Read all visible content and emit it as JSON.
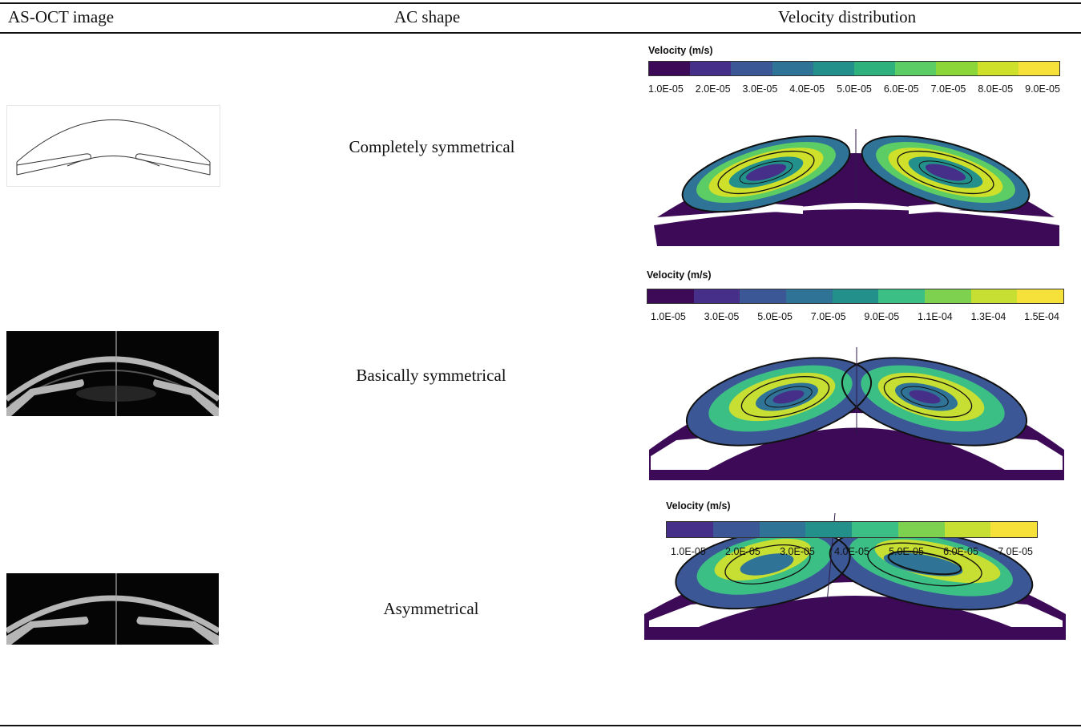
{
  "table": {
    "headers": {
      "oct": "AS-OCT image",
      "shape": "AC shape",
      "velocity": "Velocity distribution"
    },
    "rows": [
      {
        "shape": "Completely symmetrical",
        "velocity_title": "Velocity (m/s)",
        "colorbar": [
          "#3d0a57",
          "#462f88",
          "#3c5796",
          "#2f7396",
          "#23908c",
          "#2fb17d",
          "#5ccc65",
          "#8dd63a",
          "#cfe02a",
          "#f6e03a"
        ],
        "ticks": [
          "1.0E-05",
          "2.0E-05",
          "3.0E-05",
          "4.0E-05",
          "5.0E-05",
          "6.0E-05",
          "7.0E-05",
          "8.0E-05",
          "9.0E-05"
        ]
      },
      {
        "shape": "Basically symmetrical",
        "velocity_title": "Velocity (m/s)",
        "colorbar": [
          "#3d0a57",
          "#462f88",
          "#3c5796",
          "#2f7396",
          "#23908c",
          "#3cbf85",
          "#7ed04f",
          "#c7de33",
          "#f6e03a"
        ],
        "ticks": [
          "1.0E-05",
          "3.0E-05",
          "5.0E-05",
          "7.0E-05",
          "9.0E-05",
          "1.1E-04",
          "1.3E-04",
          "1.5E-04"
        ]
      },
      {
        "shape": "Asymmetrical",
        "velocity_title": "Velocity (m/s)",
        "colorbar": [
          "#462f88",
          "#3c5796",
          "#2f7396",
          "#23908c",
          "#3cbf85",
          "#7ed04f",
          "#c7de33",
          "#f6e03a"
        ],
        "ticks": [
          "1.0E-05",
          "2.0E-05",
          "3.0E-05",
          "4.0E-05",
          "5.0E-05",
          "6.0E-05",
          "7.0E-05"
        ]
      }
    ]
  }
}
